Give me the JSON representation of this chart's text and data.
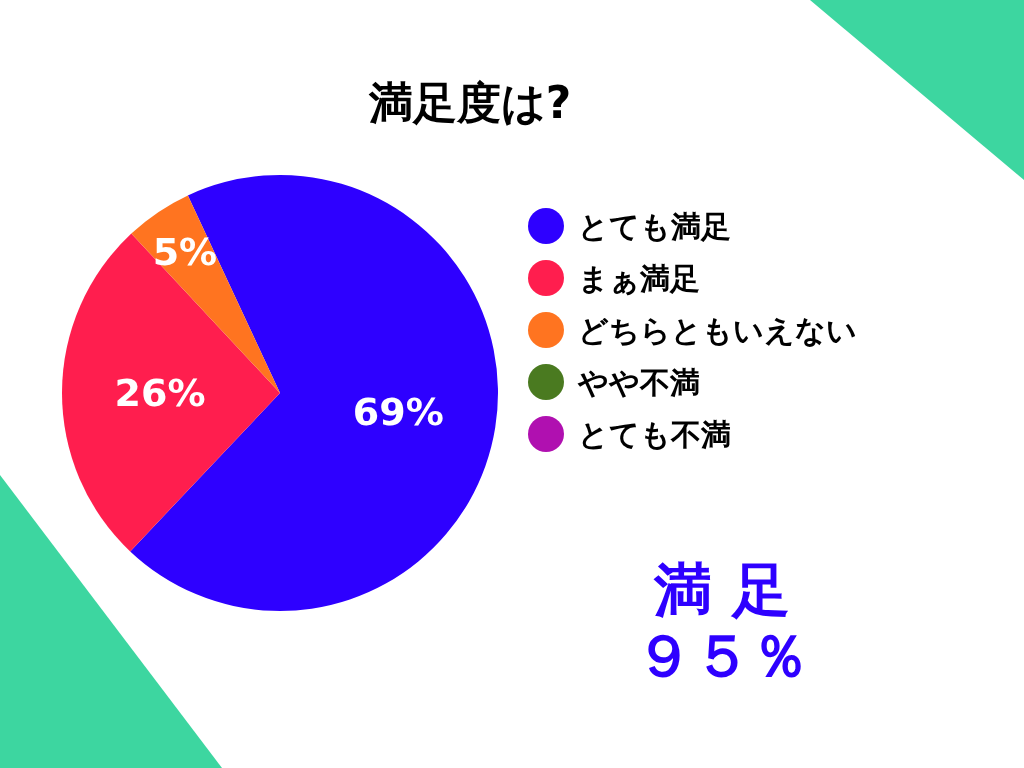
{
  "chart_data": {
    "type": "pie",
    "title": "満足度は?",
    "categories": [
      "とても満足",
      "まぁ満足",
      "どちらともいえない",
      "やや不満",
      "とても不満"
    ],
    "values": [
      69,
      26,
      5,
      0,
      0
    ],
    "colors": [
      "#2e00ff",
      "#ff1e4e",
      "#ff7420",
      "#4a7a20",
      "#b010b0"
    ],
    "value_labels": [
      "69%",
      "26%",
      "5%",
      null,
      null
    ],
    "legend": "right",
    "annotations": [
      "満 足",
      "９５％"
    ]
  }
}
